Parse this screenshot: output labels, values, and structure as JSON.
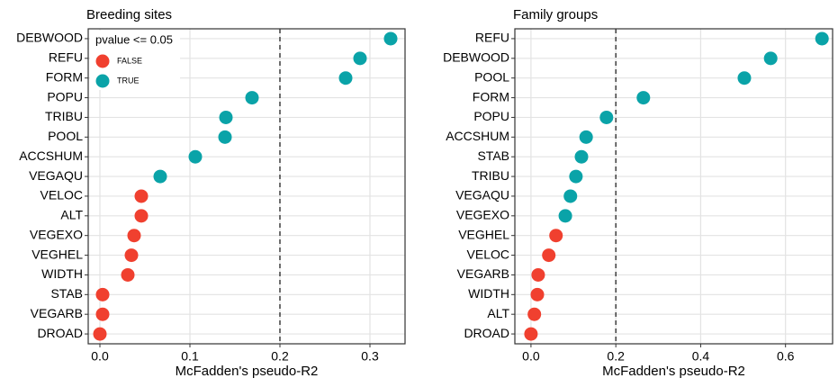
{
  "chart_data": [
    {
      "type": "dot",
      "title": "Breeding sites",
      "xlabel": "McFadden's pseudo-R2",
      "categories": [
        "DEBWOOD",
        "REFU",
        "FORM",
        "POPU",
        "TRIBU",
        "POOL",
        "ACCSHUM",
        "VEGAQU",
        "VELOC",
        "ALT",
        "VEGEXO",
        "VEGHEL",
        "WIDTH",
        "STAB",
        "VEGARB",
        "DROAD"
      ],
      "series": [
        {
          "name": "FALSE",
          "color": "#f0402f",
          "values": [
            null,
            null,
            null,
            null,
            null,
            null,
            null,
            null,
            0.046,
            0.046,
            0.038,
            0.035,
            0.031,
            0.003,
            0.003,
            0.0
          ]
        },
        {
          "name": "TRUE",
          "color": "#0aa3a8",
          "values": [
            0.323,
            0.289,
            0.273,
            0.169,
            0.14,
            0.139,
            0.106,
            0.067,
            null,
            null,
            null,
            null,
            null,
            null,
            null,
            null
          ]
        }
      ],
      "legend_title": "pvalue <= 0.05",
      "legend": "top-left",
      "xlim": [
        -0.013,
        0.339
      ],
      "xticks": [
        {
          "value": 0,
          "label": "0.0"
        },
        0.1,
        0.2,
        0.3
      ],
      "reference_line": 0.2,
      "grid": true
    },
    {
      "type": "dot",
      "title": "Family groups",
      "xlabel": "McFadden's pseudo-R2",
      "categories": [
        "REFU",
        "DEBWOOD",
        "POOL",
        "FORM",
        "POPU",
        "ACCSHUM",
        "STAB",
        "TRIBU",
        "VEGAQU",
        "VEGEXO",
        "VEGHEL",
        "VELOC",
        "VEGARB",
        "WIDTH",
        "ALT",
        "DROAD"
      ],
      "series": [
        {
          "color": "#f0402f",
          "values": [
            null,
            null,
            null,
            null,
            null,
            null,
            null,
            null,
            null,
            null,
            0.059,
            0.042,
            0.017,
            0.015,
            0.008,
            0.0
          ]
        },
        {
          "color": "#0aa3a8",
          "values": [
            0.686,
            0.565,
            0.503,
            0.265,
            0.178,
            0.13,
            0.119,
            0.106,
            0.093,
            0.081,
            null,
            null,
            null,
            null,
            null,
            null
          ]
        }
      ],
      "xlim": [
        -0.038,
        0.711
      ],
      "xticks": [
        {
          "value": 0,
          "label": "0.0"
        },
        0.2,
        0.4,
        0.6
      ],
      "reference_line": 0.2,
      "grid": true
    }
  ]
}
